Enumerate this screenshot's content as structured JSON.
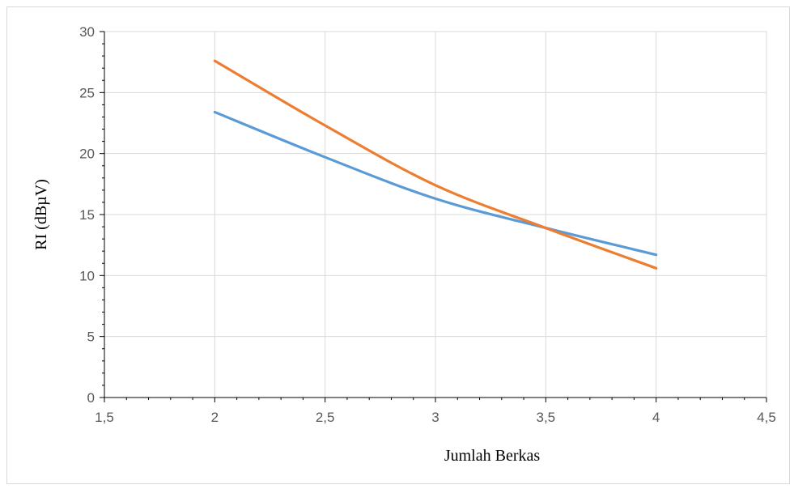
{
  "chart_data": {
    "type": "line",
    "title": "",
    "xlabel": "Jumlah Berkas",
    "ylabel": "RI (dBµV)",
    "xlim": [
      1.5,
      4.5
    ],
    "ylim": [
      0,
      30
    ],
    "x_ticks": [
      1.5,
      2,
      2.5,
      3,
      3.5,
      4,
      4.5
    ],
    "y_ticks": [
      0,
      5,
      10,
      15,
      20,
      25,
      30
    ],
    "x_tick_labels": [
      "1,5",
      "2",
      "2,5",
      "3",
      "3,5",
      "4",
      "4,5"
    ],
    "y_tick_labels": [
      "0",
      "5",
      "10",
      "15",
      "20",
      "25",
      "30"
    ],
    "grid": true,
    "legend": "none",
    "smooth": true,
    "x": [
      2,
      2.5,
      3,
      3.5,
      4
    ],
    "series": [
      {
        "color": "#5b9bd5",
        "values": [
          23.4,
          19.7,
          16.3,
          13.9,
          11.7
        ]
      },
      {
        "color": "#ed7d31",
        "values": [
          27.6,
          22.3,
          17.4,
          13.9,
          10.6
        ]
      }
    ]
  }
}
